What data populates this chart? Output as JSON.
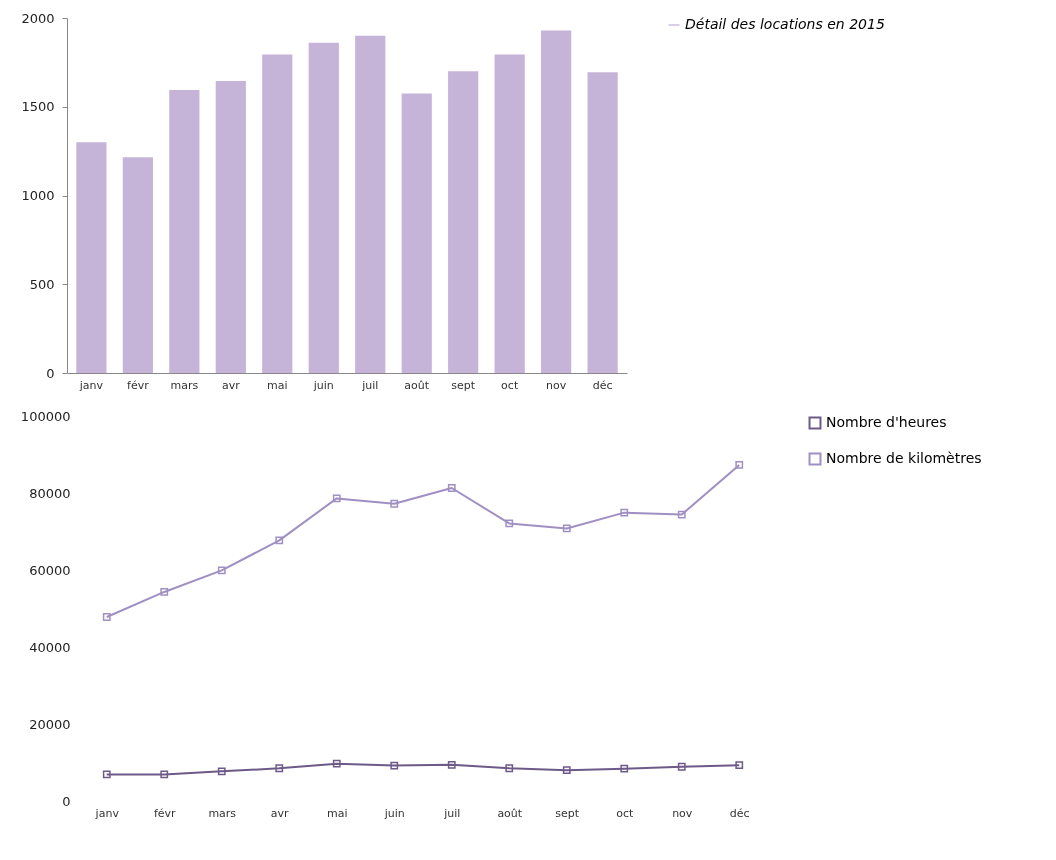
{
  "chart_data": [
    {
      "type": "bar",
      "categories": [
        "janv",
        "févr",
        "mars",
        "avr",
        "mai",
        "juin",
        "juil",
        "août",
        "sept",
        "oct",
        "nov",
        "déc"
      ],
      "series": [
        {
          "name": "Détail des locations en 2015",
          "color": "#c5b4d8",
          "values": [
            1300,
            1215,
            1595,
            1645,
            1795,
            1860,
            1900,
            1575,
            1700,
            1795,
            1930,
            1695
          ]
        }
      ],
      "ylim": [
        0,
        2000
      ],
      "yticks": [
        0,
        500,
        1000,
        1500,
        2000
      ],
      "legend": "top right"
    },
    {
      "type": "line",
      "categories": [
        "janv",
        "févr",
        "mars",
        "avr",
        "mai",
        "juin",
        "juil",
        "août",
        "sept",
        "oct",
        "nov",
        "déc"
      ],
      "series": [
        {
          "name": "Nombre d'heures",
          "color": "#6e5a88",
          "values": [
            6900,
            6900,
            7700,
            8500,
            9700,
            9200,
            9400,
            8500,
            8000,
            8400,
            8900,
            9300
          ]
        },
        {
          "name": "Nombre de kilomètres",
          "color": "#a08fc2",
          "values": [
            47800,
            54300,
            59900,
            67700,
            78600,
            77200,
            81300,
            72100,
            70800,
            74900,
            74400,
            87300
          ]
        }
      ],
      "ylim": [
        0,
        100000
      ],
      "yticks": [
        0,
        20000,
        40000,
        60000,
        80000,
        100000
      ],
      "legend": "top right",
      "marker": "square",
      "line_style": "solid"
    }
  ]
}
